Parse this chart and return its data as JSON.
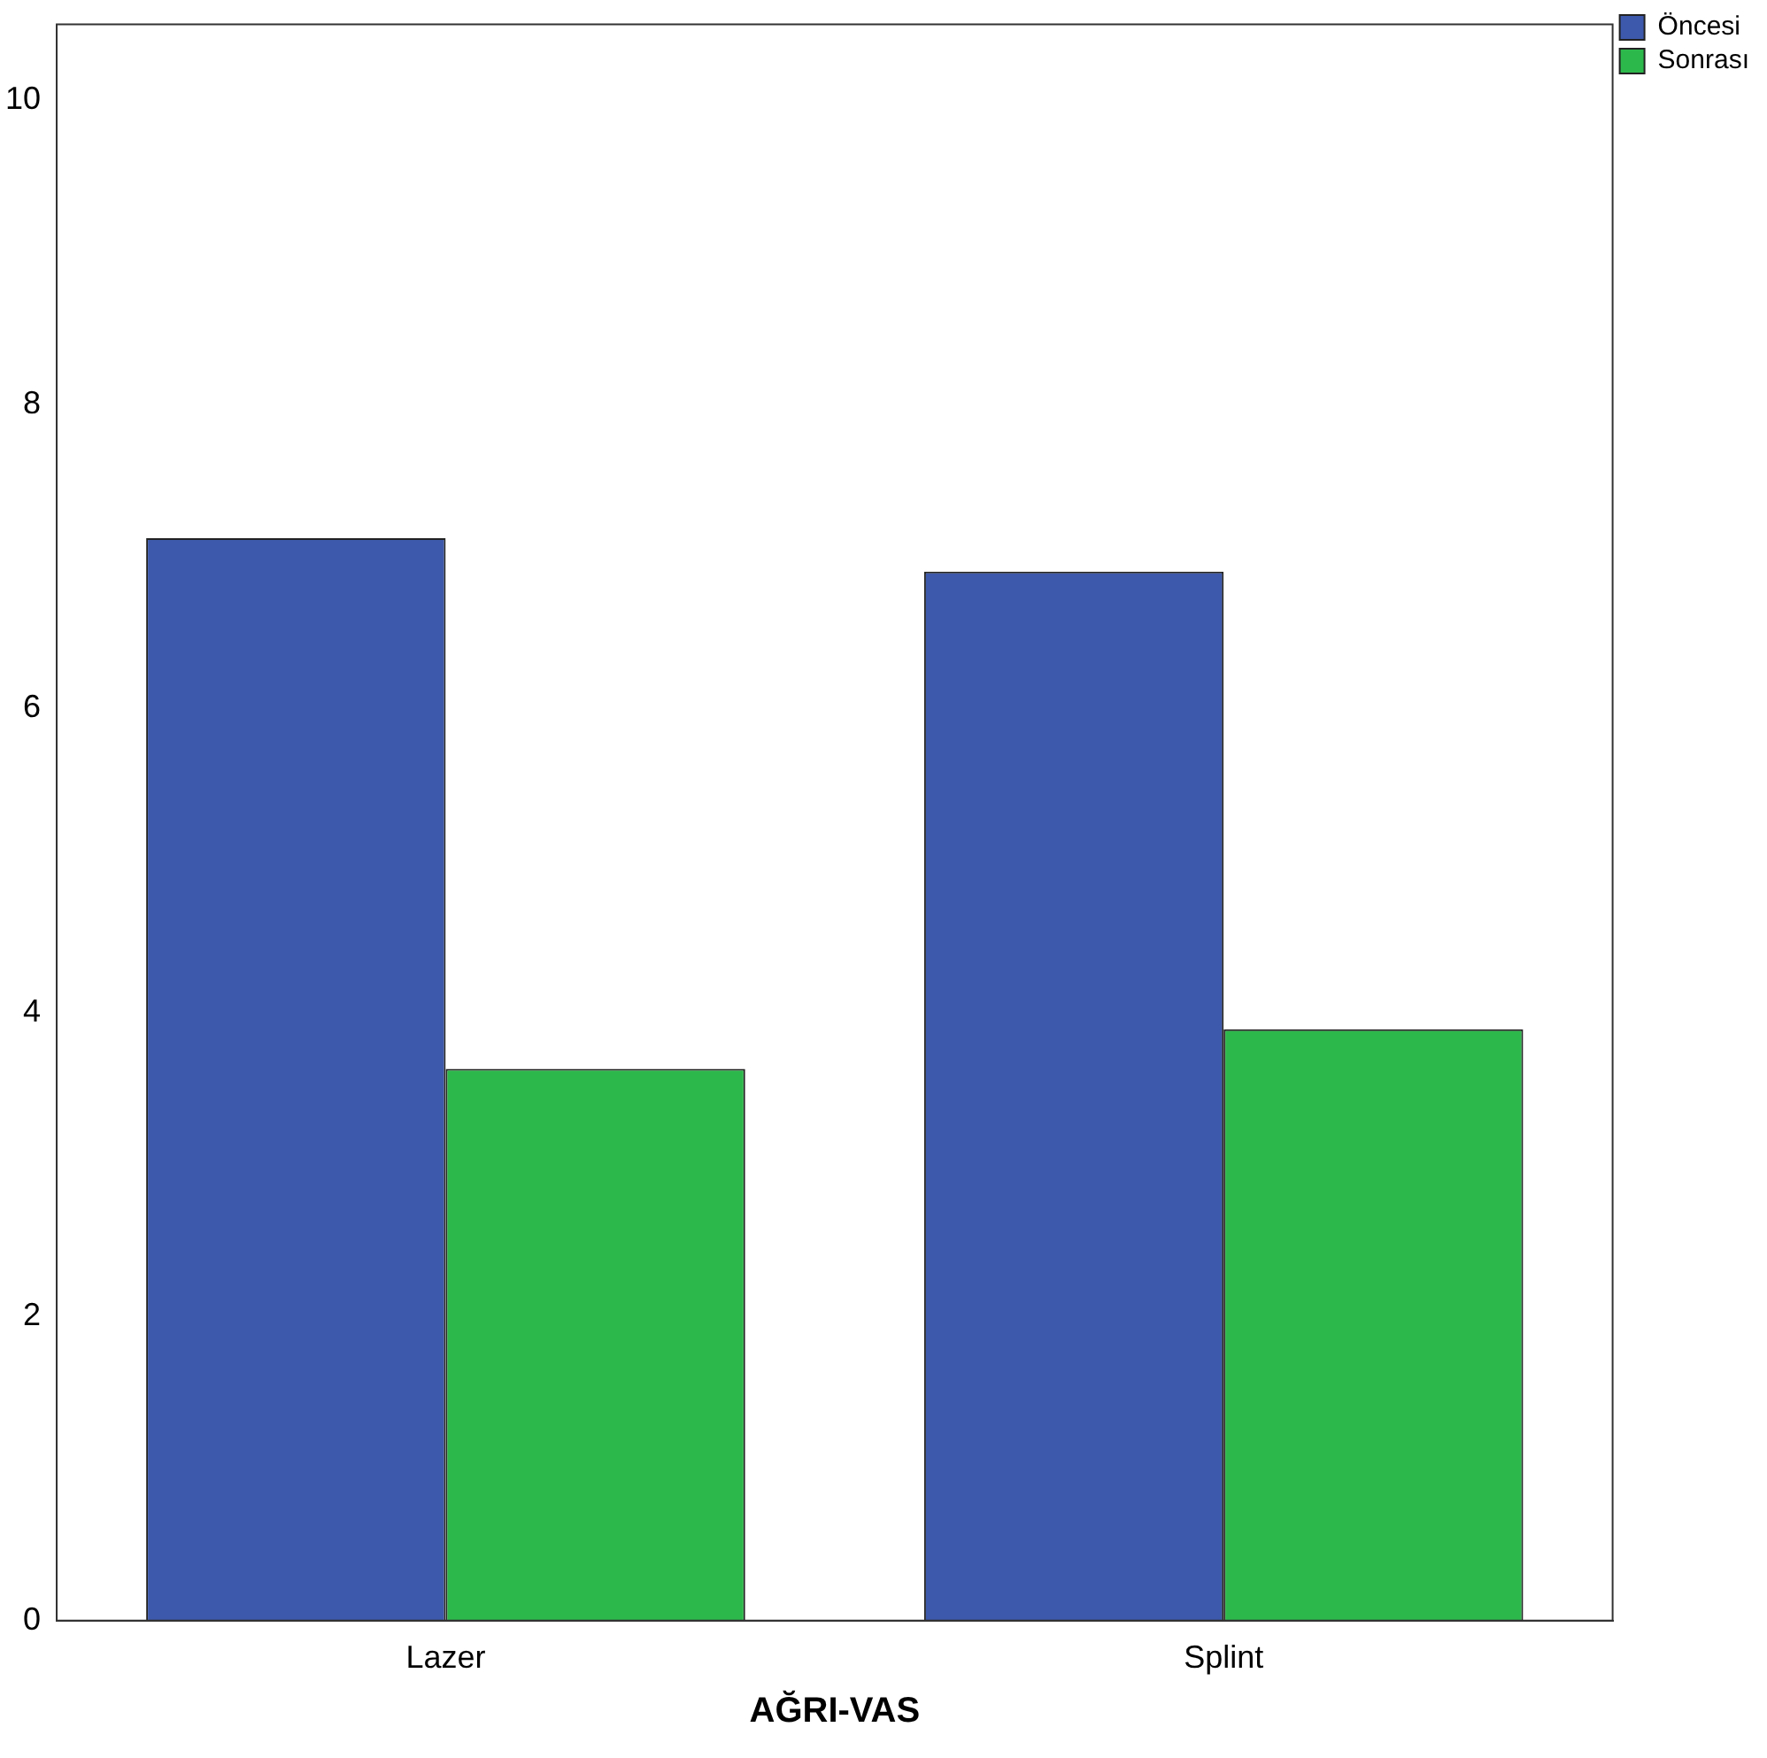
{
  "chart_data": {
    "type": "bar",
    "xlabel": "AĞRI-VAS",
    "categories": [
      "Lazer",
      "Splint"
    ],
    "series": [
      {
        "name": "Öncesi",
        "color": "#3d59ab",
        "values": [
          7.12,
          6.9
        ]
      },
      {
        "name": "Sonrası",
        "color": "#2db84b",
        "values": [
          3.63,
          3.89
        ]
      }
    ],
    "ylim": [
      0,
      10.5
    ],
    "yticks": [
      0,
      2,
      4,
      6,
      8,
      10
    ],
    "grid": false,
    "legend": "top right"
  }
}
